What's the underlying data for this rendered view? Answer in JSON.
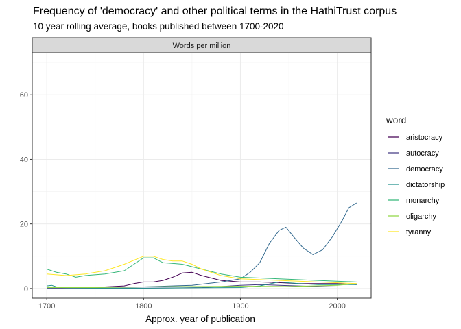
{
  "chart_data": {
    "type": "line",
    "title": "Frequency of 'democracy' and other political terms in the HathiTrust corpus",
    "subtitle": "10 year rolling average, books published between 1700-2020",
    "facet_label": "Words per million",
    "xlabel": "Approx. year of publication",
    "ylabel": "",
    "xlim": [
      1685,
      2035
    ],
    "ylim": [
      -3,
      73
    ],
    "xticks": [
      1700,
      1800,
      1900,
      2000
    ],
    "yticks": [
      0,
      20,
      40,
      60
    ],
    "grid": true,
    "legend": {
      "title": "word",
      "placement": "right"
    },
    "series": [
      {
        "name": "aristocracy",
        "color": "#440154",
        "x": [
          1700,
          1720,
          1740,
          1760,
          1780,
          1790,
          1800,
          1810,
          1820,
          1830,
          1840,
          1850,
          1860,
          1880,
          1900,
          1920,
          1940,
          1960,
          1980,
          2000,
          2020
        ],
        "y": [
          0.5,
          0.5,
          0.5,
          0.5,
          0.8,
          1.5,
          2.0,
          2.0,
          2.5,
          3.5,
          4.8,
          5.0,
          4.0,
          2.5,
          2.0,
          2.0,
          1.8,
          1.5,
          1.5,
          1.5,
          1.2
        ]
      },
      {
        "name": "autocracy",
        "color": "#443a83",
        "x": [
          1700,
          1750,
          1800,
          1840,
          1860,
          1880,
          1900,
          1920,
          1940,
          1960,
          1980,
          2000,
          2020
        ],
        "y": [
          0.1,
          0.1,
          0.1,
          0.2,
          0.3,
          0.6,
          1.0,
          1.2,
          1.0,
          0.8,
          0.6,
          0.5,
          0.5
        ]
      },
      {
        "name": "democracy",
        "color": "#31688e",
        "x": [
          1700,
          1750,
          1800,
          1850,
          1880,
          1900,
          1910,
          1920,
          1930,
          1940,
          1947,
          1955,
          1965,
          1975,
          1985,
          1995,
          2005,
          2012,
          2020
        ],
        "y": [
          0.2,
          0.3,
          0.5,
          1.0,
          2.0,
          3.0,
          5.0,
          8.0,
          14.0,
          18.0,
          19.0,
          16.0,
          12.5,
          10.5,
          12.0,
          16.0,
          21.0,
          25.0,
          26.5
        ]
      },
      {
        "name": "dictatorship",
        "color": "#21918c",
        "x": [
          1700,
          1705,
          1710,
          1715,
          1720,
          1750,
          1800,
          1850,
          1900,
          1920,
          1940,
          1960,
          1980,
          2000,
          2020
        ],
        "y": [
          0.8,
          1.0,
          0.5,
          0.3,
          0.2,
          0.1,
          0.1,
          0.2,
          0.3,
          0.8,
          2.0,
          1.5,
          1.2,
          1.2,
          1.2
        ]
      },
      {
        "name": "monarchy",
        "color": "#35b779",
        "x": [
          1700,
          1710,
          1720,
          1730,
          1740,
          1760,
          1780,
          1790,
          1800,
          1810,
          1820,
          1840,
          1860,
          1880,
          1900,
          1940,
          1980,
          2020
        ],
        "y": [
          6.0,
          5.0,
          4.5,
          3.5,
          4.0,
          4.5,
          5.5,
          7.5,
          9.5,
          9.5,
          8.0,
          7.5,
          6.0,
          4.5,
          3.5,
          3.0,
          2.5,
          2.0
        ]
      },
      {
        "name": "oligarchy",
        "color": "#90d743",
        "x": [
          1700,
          1750,
          1800,
          1850,
          1900,
          1950,
          2000,
          2020
        ],
        "y": [
          0.3,
          0.3,
          0.5,
          0.6,
          0.7,
          0.6,
          1.0,
          1.5
        ]
      },
      {
        "name": "tyranny",
        "color": "#fde725",
        "x": [
          1700,
          1720,
          1740,
          1760,
          1780,
          1800,
          1810,
          1820,
          1830,
          1840,
          1850,
          1860,
          1880,
          1900,
          1940,
          1980,
          2020
        ],
        "y": [
          4.5,
          4.0,
          4.5,
          5.5,
          7.5,
          10.0,
          10.0,
          9.0,
          8.5,
          8.5,
          7.5,
          6.0,
          4.0,
          3.0,
          2.5,
          2.0,
          1.5
        ]
      }
    ]
  }
}
